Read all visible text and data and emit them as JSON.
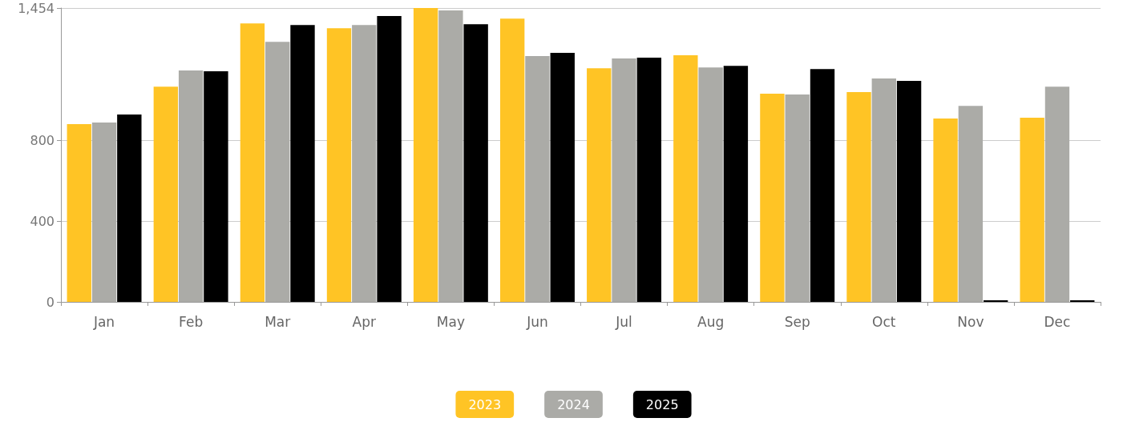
{
  "chart_data": {
    "type": "bar",
    "categories": [
      "Jan",
      "Feb",
      "Mar",
      "Apr",
      "May",
      "Jun",
      "Jul",
      "Aug",
      "Sep",
      "Oct",
      "Nov",
      "Dec"
    ],
    "series": [
      {
        "name": "2023",
        "color": "#ffc425",
        "values": [
          880,
          1065,
          1378,
          1354,
          1454,
          1402,
          1156,
          1220,
          1030,
          1038,
          907,
          911
        ]
      },
      {
        "name": "2024",
        "color": "#ababa7",
        "values": [
          887,
          1145,
          1287,
          1370,
          1442,
          1216,
          1204,
          1160,
          1026,
          1105,
          970,
          1065
        ]
      },
      {
        "name": "2025",
        "color": "#000000",
        "values": [
          927,
          1141,
          1370,
          1414,
          1374,
          1232,
          1208,
          1168,
          1152,
          1093,
          8,
          8
        ]
      }
    ],
    "ylim": [
      0,
      1454
    ],
    "yticks": [
      0,
      400,
      800,
      {
        "value": 1454,
        "label": "1,454"
      }
    ],
    "grid": "y",
    "legend": "bottom"
  }
}
